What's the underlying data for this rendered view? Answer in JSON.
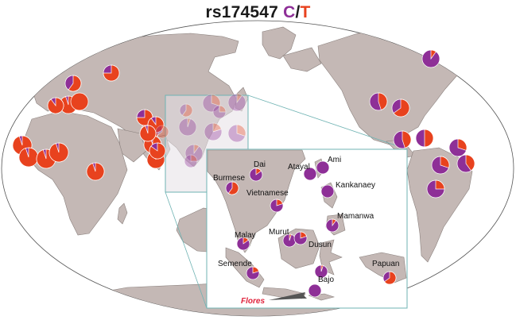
{
  "title": {
    "snp": "rs174547",
    "allele_c": "C",
    "separator": "/",
    "allele_t": "T"
  },
  "colors": {
    "allele_c": "#8e2f97",
    "allele_t": "#e8421e",
    "land": "#c4b8b5",
    "ocean": "#ffffff",
    "inset_border": "#6fb3b3"
  },
  "inset_labels": [
    "Dai",
    "Atayal",
    "Ami",
    "Burmese",
    "Vietnamese",
    "Kankanaey",
    "Mamanwa",
    "Malay",
    "Murut",
    "Dusun",
    "Semende",
    "Papuan",
    "Bajo"
  ],
  "highlight_label": "Flores",
  "chart_data": {
    "type": "pie",
    "description_values": "fraction of allele T per population pie (remainder is allele C)",
    "series": [
      {
        "name": "C",
        "color": "#8e2f97"
      },
      {
        "name": "T",
        "color": "#e8421e"
      }
    ],
    "pies": [
      {
        "t": 0.6
      },
      {
        "t": 0.75
      },
      {
        "t": 0.95
      },
      {
        "t": 1.0
      },
      {
        "t": 0.9
      },
      {
        "t": 0.95
      },
      {
        "t": 0.95
      },
      {
        "t": 0.95
      },
      {
        "t": 0.95
      },
      {
        "t": 0.95
      },
      {
        "t": 0.9
      },
      {
        "t": 0.95
      },
      {
        "t": 0.95
      },
      {
        "t": 0.75
      },
      {
        "t": 0.9
      },
      {
        "t": 0.95
      },
      {
        "t": 0.85
      },
      {
        "t": 0.3
      },
      {
        "t": 0.1
      },
      {
        "t": 0.05
      },
      {
        "t": 0.2
      },
      {
        "t": 0.3
      },
      {
        "t": 0.1
      },
      {
        "t": 0.6
      },
      {
        "t": 0.25
      },
      {
        "t": 0.25
      },
      {
        "t": 0.65
      },
      {
        "t": 0.1
      },
      {
        "t": 0.45
      },
      {
        "t": 0.65
      },
      {
        "t": 0.45
      },
      {
        "t": 0.5
      },
      {
        "t": 0.3
      },
      {
        "t": 0.4
      },
      {
        "t": 0.3
      },
      {
        "t": 0.25
      },
      {
        "label": "Dai",
        "t": 0.15
      },
      {
        "label": "Atayal",
        "t": 0.0
      },
      {
        "label": "Ami",
        "t": 0.0
      },
      {
        "label": "Burmese",
        "t": 0.6
      },
      {
        "label": "Vietnamese",
        "t": 0.2
      },
      {
        "label": "Kankanaey",
        "t": 0.0
      },
      {
        "label": "Mamanwa",
        "t": 0.1
      },
      {
        "label": "Malay",
        "t": 0.15
      },
      {
        "label": "Murut",
        "t": 0.05
      },
      {
        "label": "Dusun",
        "t": 0.2
      },
      {
        "label": "Semende",
        "t": 0.2
      },
      {
        "label": "Papuan",
        "t": 0.65
      },
      {
        "label": "Bajo",
        "t": 0.05
      },
      {
        "label": "Flores",
        "t": 0.0
      }
    ]
  }
}
